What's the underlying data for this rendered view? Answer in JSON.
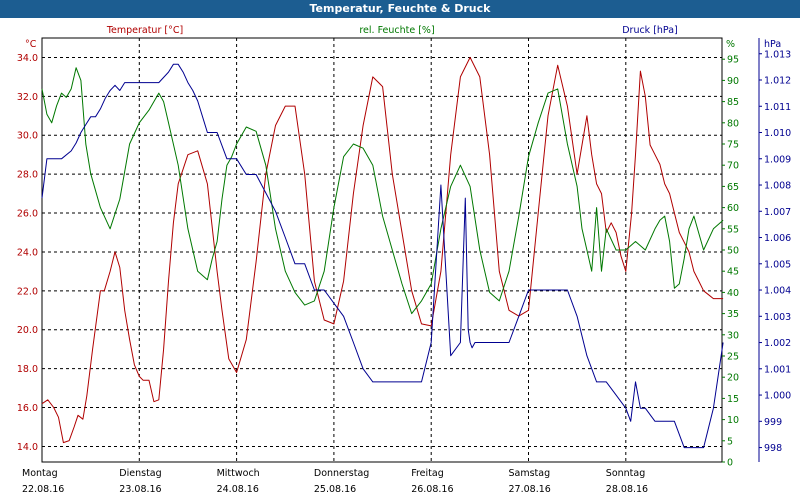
{
  "chart_data": {
    "type": "line",
    "title": "Temperatur, Feuchte & Druck",
    "x_range": [
      0,
      7
    ],
    "x_ticks": [
      {
        "day": "Montag",
        "date": "22.08.16"
      },
      {
        "day": "Dienstag",
        "date": "23.08.16"
      },
      {
        "day": "Mittwoch",
        "date": "24.08.16"
      },
      {
        "day": "Donnerstag",
        "date": "25.08.16"
      },
      {
        "day": "Freitag",
        "date": "26.08.16"
      },
      {
        "day": "Samstag",
        "date": "27.08.16"
      },
      {
        "day": "Sonntag",
        "date": "28.08.16"
      }
    ],
    "grid": true,
    "colors": {
      "temperature": "#b00000",
      "humidity": "#007800",
      "pressure": "#000090"
    },
    "axes": {
      "temperature": {
        "label": "Temperatur [°C]",
        "unit": "°C",
        "min": 13.2,
        "max": 35.0,
        "ticks": [
          "14.0",
          "16.0",
          "18.0",
          "20.0",
          "22.0",
          "24.0",
          "26.0",
          "28.0",
          "30.0",
          "32.0",
          "34.0"
        ]
      },
      "humidity": {
        "label": "rel. Feuchte [%]",
        "unit": "%",
        "min": 0,
        "max": 100,
        "ticks": [
          "0",
          "5",
          "10",
          "15",
          "20",
          "25",
          "30",
          "35",
          "40",
          "45",
          "50",
          "55",
          "60",
          "65",
          "70",
          "75",
          "80",
          "85",
          "90",
          "95"
        ]
      },
      "pressure": {
        "label": "Druck [hPa]",
        "unit": "hPa",
        "min": 997.45,
        "max": 1013.6,
        "ticks": [
          "998",
          "999",
          "1.000",
          "1.001",
          "1.002",
          "1.003",
          "1.004",
          "1.005",
          "1.006",
          "1.007",
          "1.008",
          "1.009",
          "1.010",
          "1.011",
          "1.012",
          "1.013"
        ]
      }
    },
    "series": [
      {
        "name": "Temperatur [°C]",
        "key": "temperature",
        "x": [
          0,
          0.06,
          0.12,
          0.17,
          0.22,
          0.28,
          0.33,
          0.37,
          0.42,
          0.46,
          0.52,
          0.6,
          0.64,
          0.7,
          0.75,
          0.8,
          0.85,
          0.9,
          0.95,
          1.0,
          1.04,
          1.1,
          1.15,
          1.2,
          1.25,
          1.3,
          1.35,
          1.4,
          1.5,
          1.6,
          1.7,
          1.8,
          1.85,
          1.92,
          2.0,
          2.1,
          2.2,
          2.3,
          2.4,
          2.5,
          2.6,
          2.7,
          2.8,
          2.9,
          3.0,
          3.1,
          3.2,
          3.3,
          3.4,
          3.5,
          3.6,
          3.7,
          3.8,
          3.9,
          4.0,
          4.1,
          4.2,
          4.3,
          4.4,
          4.5,
          4.6,
          4.7,
          4.8,
          4.9,
          5.0,
          5.1,
          5.2,
          5.3,
          5.4,
          5.5,
          5.55,
          5.6,
          5.65,
          5.7,
          5.75,
          5.8,
          5.85,
          5.9,
          5.95,
          6.0,
          6.03,
          6.06,
          6.1,
          6.15,
          6.2,
          6.25,
          6.3,
          6.35,
          6.4,
          6.45,
          6.5,
          6.55,
          6.6,
          6.65,
          6.7,
          6.75,
          6.8,
          6.85,
          6.9,
          6.95,
          7.0
        ],
        "values": [
          16.2,
          16.4,
          16.0,
          15.5,
          14.2,
          14.3,
          15.0,
          15.6,
          15.4,
          16.6,
          19.0,
          22.0,
          22.0,
          23.0,
          24.0,
          23.2,
          21.0,
          19.5,
          18.2,
          17.6,
          17.4,
          17.4,
          16.3,
          16.4,
          19.0,
          22.5,
          25.5,
          27.5,
          29.0,
          29.2,
          27.5,
          23.0,
          21.0,
          18.5,
          17.8,
          19.5,
          23.5,
          28.0,
          30.5,
          31.5,
          31.5,
          28.0,
          22.5,
          20.5,
          20.3,
          22.5,
          27.0,
          30.5,
          33.0,
          32.5,
          28.0,
          25.0,
          22.0,
          20.3,
          20.2,
          23.0,
          29.0,
          33.0,
          34.0,
          33.0,
          29.0,
          23.0,
          21.0,
          20.7,
          21.0,
          26.0,
          31.0,
          33.6,
          31.5,
          28.0,
          29.5,
          31.0,
          29.0,
          27.5,
          27.0,
          25.0,
          25.5,
          25.0,
          23.8,
          23.0,
          24.5,
          26.0,
          29.0,
          33.3,
          32.0,
          29.5,
          29.0,
          28.5,
          27.5,
          27.0,
          26.0,
          25.0,
          24.5,
          24.0,
          23.0,
          22.5,
          22.0,
          21.8,
          21.6,
          21.6,
          21.6
        ]
      },
      {
        "name": "rel. Feuchte [%]",
        "key": "humidity",
        "x": [
          0,
          0.05,
          0.1,
          0.15,
          0.2,
          0.25,
          0.3,
          0.35,
          0.4,
          0.45,
          0.5,
          0.6,
          0.7,
          0.8,
          0.9,
          1.0,
          1.1,
          1.2,
          1.25,
          1.3,
          1.4,
          1.5,
          1.6,
          1.7,
          1.75,
          1.8,
          1.85,
          1.9,
          1.95,
          2.0,
          2.1,
          2.2,
          2.3,
          2.4,
          2.5,
          2.6,
          2.7,
          2.8,
          2.9,
          3.0,
          3.1,
          3.2,
          3.3,
          3.4,
          3.5,
          3.6,
          3.7,
          3.8,
          3.9,
          4.0,
          4.1,
          4.2,
          4.3,
          4.4,
          4.5,
          4.6,
          4.7,
          4.8,
          4.9,
          5.0,
          5.1,
          5.2,
          5.3,
          5.4,
          5.5,
          5.55,
          5.6,
          5.65,
          5.7,
          5.75,
          5.8,
          5.9,
          6.0,
          6.1,
          6.2,
          6.3,
          6.35,
          6.4,
          6.45,
          6.5,
          6.55,
          6.6,
          6.65,
          6.7,
          6.8,
          6.9,
          7.0
        ],
        "values": [
          88,
          82,
          80,
          84,
          87,
          86,
          88,
          93,
          90,
          75,
          68,
          60,
          55,
          62,
          75,
          80,
          83,
          87,
          85,
          80,
          70,
          55,
          45,
          43,
          48,
          52,
          62,
          70,
          72,
          75,
          79,
          78,
          70,
          55,
          45,
          40,
          37,
          38,
          45,
          60,
          72,
          75,
          74,
          70,
          58,
          50,
          42,
          35,
          38,
          42,
          55,
          65,
          70,
          65,
          50,
          40,
          38,
          45,
          58,
          72,
          80,
          87,
          88,
          75,
          65,
          55,
          50,
          45,
          60,
          45,
          55,
          50,
          50,
          52,
          50,
          55,
          57,
          58,
          52,
          41,
          42,
          48,
          55,
          58,
          50,
          55,
          57
        ]
      },
      {
        "name": "Druck [hPa]",
        "key": "pressure",
        "x": [
          0,
          0.05,
          0.2,
          0.3,
          0.35,
          0.4,
          0.45,
          0.5,
          0.55,
          0.6,
          0.65,
          0.7,
          0.75,
          0.8,
          0.85,
          0.9,
          1.0,
          1.1,
          1.2,
          1.3,
          1.35,
          1.4,
          1.45,
          1.5,
          1.55,
          1.6,
          1.7,
          1.8,
          1.9,
          2.0,
          2.1,
          2.2,
          2.3,
          2.4,
          2.5,
          2.6,
          2.7,
          2.8,
          2.9,
          3.0,
          3.1,
          3.2,
          3.3,
          3.4,
          3.5,
          3.6,
          3.7,
          3.8,
          3.9,
          4.0,
          4.1,
          4.2,
          4.3,
          4.35,
          4.38,
          4.4,
          4.42,
          4.45,
          4.5,
          4.55,
          4.6,
          4.7,
          4.8,
          4.9,
          5.0,
          5.1,
          5.2,
          5.3,
          5.4,
          5.5,
          5.6,
          5.7,
          5.8,
          5.9,
          6.0,
          6.05,
          6.1,
          6.15,
          6.2,
          6.3,
          6.4,
          6.5,
          6.6,
          6.7,
          6.8,
          6.9,
          7.0
        ],
        "values": [
          1007.5,
          1009.0,
          1009.0,
          1009.3,
          1009.6,
          1010.0,
          1010.3,
          1010.6,
          1010.6,
          1010.9,
          1011.3,
          1011.6,
          1011.8,
          1011.6,
          1011.9,
          1011.9,
          1011.9,
          1011.9,
          1011.9,
          1012.3,
          1012.6,
          1012.6,
          1012.3,
          1011.9,
          1011.6,
          1011.2,
          1010.0,
          1010.0,
          1009.0,
          1009.0,
          1008.4,
          1008.4,
          1007.7,
          1007.0,
          1006.0,
          1005.0,
          1005.0,
          1004.0,
          1004.0,
          1003.5,
          1003.0,
          1002.0,
          1001.0,
          1000.5,
          1000.5,
          1000.5,
          1000.5,
          1000.5,
          1000.5,
          1002.0,
          1008.0,
          1001.5,
          1002.0,
          1007.5,
          1002.5,
          1002.0,
          1001.8,
          1002.0,
          1002.0,
          1002.0,
          1002.0,
          1002.0,
          1002.0,
          1003.0,
          1004.0,
          1004.0,
          1004.0,
          1004.0,
          1004.0,
          1003.0,
          1001.5,
          1000.5,
          1000.5,
          1000.0,
          999.5,
          999.0,
          1000.5,
          999.5,
          999.5,
          999.0,
          999.0,
          999.0,
          998.0,
          998.0,
          998.0,
          999.5,
          1002.0
        ]
      }
    ]
  }
}
